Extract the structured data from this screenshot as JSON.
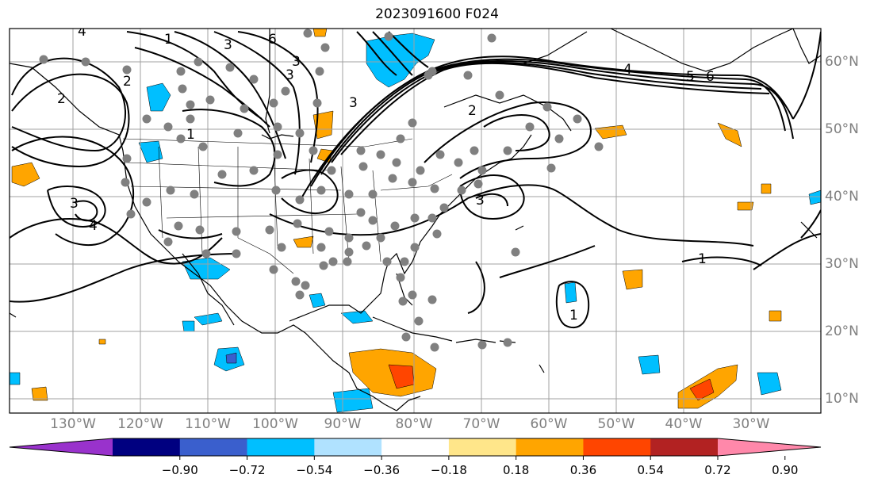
{
  "title": "2023091600 F024",
  "map": {
    "projection": "Mercator",
    "lon_labels": [
      "130°W",
      "120°W",
      "110°W",
      "100°W",
      "90°W",
      "80°W",
      "70°W",
      "60°W",
      "50°W",
      "40°W",
      "30°W"
    ],
    "lat_labels": [
      "60°N",
      "50°N",
      "40°N",
      "30°N",
      "20°N",
      "10°N"
    ],
    "contour_labels": [
      "1",
      "2",
      "3",
      "6",
      "3",
      "2",
      "3",
      "4",
      "5",
      "6",
      "3",
      "3",
      "4",
      "1",
      "1",
      "1",
      "2",
      "3",
      "4"
    ],
    "colors": {
      "contour": "#000000",
      "coastline": "#000000",
      "gridline": "#a0a0a0",
      "station_marker": "#808080"
    }
  },
  "colorbar": {
    "ticks": [
      "−0.90",
      "−0.72",
      "−0.54",
      "−0.36",
      "−0.18",
      "0.18",
      "0.36",
      "0.54",
      "0.72",
      "0.90"
    ],
    "colors": [
      "#9932cc",
      "#000080",
      "#3a5fcd",
      "#00bfff",
      "#b0e2ff",
      "#ffffff",
      "#ffe68a",
      "#ffa500",
      "#ff4500",
      "#b22222",
      "#ff88aa"
    ],
    "extend": "both"
  }
}
